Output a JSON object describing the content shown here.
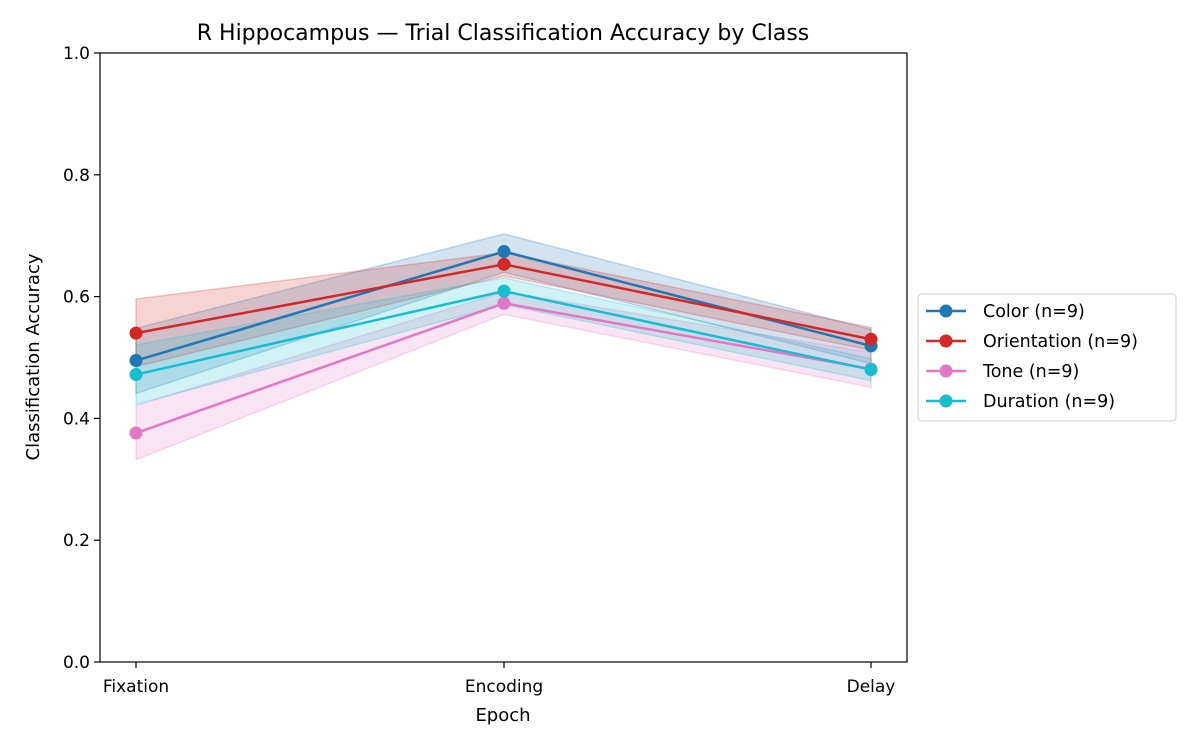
{
  "chart_data": {
    "type": "line",
    "title": "R Hippocampus — Trial Classification Accuracy by Class",
    "xlabel": "Epoch",
    "ylabel": "Classification Accuracy",
    "categories": [
      "Fixation",
      "Encoding",
      "Delay"
    ],
    "ylim": [
      0,
      1
    ],
    "yticks": [
      0.0,
      0.2,
      0.4,
      0.6,
      0.8,
      1.0
    ],
    "ytick_labels": [
      "0.0",
      "0.2",
      "0.4",
      "0.6",
      "0.8",
      "1.0"
    ],
    "grid": false,
    "legend_position": "outside-right",
    "series": [
      {
        "name": "Color (n=9)",
        "color": "#1f77b4",
        "values": [
          0.495,
          0.674,
          0.519
        ],
        "lower": [
          0.441,
          0.64,
          0.49
        ],
        "upper": [
          0.548,
          0.703,
          0.546
        ]
      },
      {
        "name": "Orientation (n=9)",
        "color": "#d62728",
        "values": [
          0.54,
          0.653,
          0.53
        ],
        "lower": [
          0.485,
          0.634,
          0.512
        ],
        "upper": [
          0.596,
          0.672,
          0.549
        ]
      },
      {
        "name": "Tone (n=9)",
        "color": "#e377c2",
        "values": [
          0.376,
          0.589,
          0.481
        ],
        "lower": [
          0.332,
          0.571,
          0.451
        ],
        "upper": [
          0.421,
          0.608,
          0.508
        ]
      },
      {
        "name": "Duration (n=9)",
        "color": "#17becf",
        "values": [
          0.472,
          0.609,
          0.48
        ],
        "lower": [
          0.423,
          0.587,
          0.462
        ],
        "upper": [
          0.521,
          0.631,
          0.498
        ]
      }
    ]
  }
}
